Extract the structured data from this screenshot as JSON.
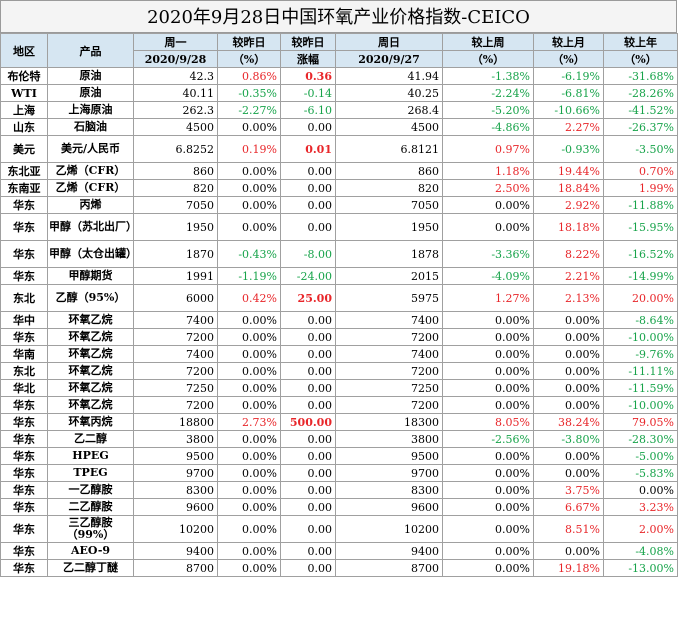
{
  "title": "2020年9月28日中国环氧产业价格指数-CEICO",
  "header": {
    "row1": [
      "地区",
      "产品",
      "周一",
      "较昨日",
      "较昨日",
      "周日",
      "较上周",
      "较上月",
      "较上年"
    ],
    "row2": [
      "2020/9/28",
      "（%）",
      "涨幅",
      "2020/9/27",
      "（%）",
      "（%）",
      "（%）"
    ]
  },
  "colors": {
    "up": "#e8262a",
    "down": "#17a34a",
    "header_bg": "#d6e6f2"
  },
  "rows": [
    {
      "region": "布伦特",
      "product": "原油",
      "mon": "42.3",
      "d_pct": "0.86%",
      "d_abs": "0.36",
      "sun": "41.94",
      "w": "-1.38%",
      "m": "-6.19%",
      "y": "-31.68%"
    },
    {
      "region": "WTI",
      "product": "原油",
      "mon": "40.11",
      "d_pct": "-0.35%",
      "d_abs": "-0.14",
      "sun": "40.25",
      "w": "-2.24%",
      "m": "-6.81%",
      "y": "-28.26%"
    },
    {
      "region": "上海",
      "product": "上海原油",
      "mon": "262.3",
      "d_pct": "-2.27%",
      "d_abs": "-6.10",
      "sun": "268.4",
      "w": "-5.20%",
      "m": "-10.66%",
      "y": "-41.52%"
    },
    {
      "region": "山东",
      "product": "石脑油",
      "mon": "4500",
      "d_pct": "0.00%",
      "d_abs": "0.00",
      "sun": "4500",
      "w": "-4.86%",
      "m": "2.27%",
      "y": "-26.37%"
    },
    {
      "region": "美元",
      "product": "美元/人民币",
      "mon": "6.8252",
      "d_pct": "0.19%",
      "d_abs": "0.01",
      "sun": "6.8121",
      "w": "0.97%",
      "m": "-0.93%",
      "y": "-3.50%"
    },
    {
      "region": "东北亚",
      "product": "乙烯（CFR）",
      "mon": "860",
      "d_pct": "0.00%",
      "d_abs": "0.00",
      "sun": "860",
      "w": "1.18%",
      "m": "19.44%",
      "y": "0.70%"
    },
    {
      "region": "东南亚",
      "product": "乙烯（CFR）",
      "mon": "820",
      "d_pct": "0.00%",
      "d_abs": "0.00",
      "sun": "820",
      "w": "2.50%",
      "m": "18.84%",
      "y": "1.99%"
    },
    {
      "region": "华东",
      "product": "丙烯",
      "mon": "7050",
      "d_pct": "0.00%",
      "d_abs": "0.00",
      "sun": "7050",
      "w": "0.00%",
      "m": "2.92%",
      "y": "-11.88%"
    },
    {
      "region": "华东",
      "product": "甲醇（苏北出厂）",
      "mon": "1950",
      "d_pct": "0.00%",
      "d_abs": "0.00",
      "sun": "1950",
      "w": "0.00%",
      "m": "18.18%",
      "y": "-15.95%"
    },
    {
      "region": "华东",
      "product": "甲醇（太仓出罐）",
      "mon": "1870",
      "d_pct": "-0.43%",
      "d_abs": "-8.00",
      "sun": "1878",
      "w": "-3.36%",
      "m": "8.22%",
      "y": "-16.52%"
    },
    {
      "region": "华东",
      "product": "甲醇期货",
      "mon": "1991",
      "d_pct": "-1.19%",
      "d_abs": "-24.00",
      "sun": "2015",
      "w": "-4.09%",
      "m": "2.21%",
      "y": "-14.99%"
    },
    {
      "region": "东北",
      "product": "乙醇（95%）",
      "mon": "6000",
      "d_pct": "0.42%",
      "d_abs": "25.00",
      "sun": "5975",
      "w": "1.27%",
      "m": "2.13%",
      "y": "20.00%"
    },
    {
      "region": "华中",
      "product": "环氧乙烷",
      "mon": "7400",
      "d_pct": "0.00%",
      "d_abs": "0.00",
      "sun": "7400",
      "w": "0.00%",
      "m": "0.00%",
      "y": "-8.64%"
    },
    {
      "region": "华东",
      "product": "环氧乙烷",
      "mon": "7200",
      "d_pct": "0.00%",
      "d_abs": "0.00",
      "sun": "7200",
      "w": "0.00%",
      "m": "0.00%",
      "y": "-10.00%"
    },
    {
      "region": "华南",
      "product": "环氧乙烷",
      "mon": "7400",
      "d_pct": "0.00%",
      "d_abs": "0.00",
      "sun": "7400",
      "w": "0.00%",
      "m": "0.00%",
      "y": "-9.76%"
    },
    {
      "region": "东北",
      "product": "环氧乙烷",
      "mon": "7200",
      "d_pct": "0.00%",
      "d_abs": "0.00",
      "sun": "7200",
      "w": "0.00%",
      "m": "0.00%",
      "y": "-11.11%"
    },
    {
      "region": "华北",
      "product": "环氧乙烷",
      "mon": "7250",
      "d_pct": "0.00%",
      "d_abs": "0.00",
      "sun": "7250",
      "w": "0.00%",
      "m": "0.00%",
      "y": "-11.59%"
    },
    {
      "region": "华东",
      "product": "环氧乙烷",
      "mon": "7200",
      "d_pct": "0.00%",
      "d_abs": "0.00",
      "sun": "7200",
      "w": "0.00%",
      "m": "0.00%",
      "y": "-10.00%"
    },
    {
      "region": "华东",
      "product": "环氧丙烷",
      "mon": "18800",
      "d_pct": "2.73%",
      "d_abs": "500.00",
      "sun": "18300",
      "w": "8.05%",
      "m": "38.24%",
      "y": "79.05%"
    },
    {
      "region": "华东",
      "product": "乙二醇",
      "mon": "3800",
      "d_pct": "0.00%",
      "d_abs": "0.00",
      "sun": "3800",
      "w": "-2.56%",
      "m": "-3.80%",
      "y": "-28.30%"
    },
    {
      "region": "华东",
      "product": "HPEG",
      "mon": "9500",
      "d_pct": "0.00%",
      "d_abs": "0.00",
      "sun": "9500",
      "w": "0.00%",
      "m": "0.00%",
      "y": "-5.00%"
    },
    {
      "region": "华东",
      "product": "TPEG",
      "mon": "9700",
      "d_pct": "0.00%",
      "d_abs": "0.00",
      "sun": "9700",
      "w": "0.00%",
      "m": "0.00%",
      "y": "-5.83%"
    },
    {
      "region": "华东",
      "product": "一乙醇胺",
      "mon": "8300",
      "d_pct": "0.00%",
      "d_abs": "0.00",
      "sun": "8300",
      "w": "0.00%",
      "m": "3.75%",
      "y": "0.00%"
    },
    {
      "region": "华东",
      "product": "二乙醇胺",
      "mon": "9600",
      "d_pct": "0.00%",
      "d_abs": "0.00",
      "sun": "9600",
      "w": "0.00%",
      "m": "6.67%",
      "y": "3.23%"
    },
    {
      "region": "华东",
      "product": "三乙醇胺（99%）",
      "mon": "10200",
      "d_pct": "0.00%",
      "d_abs": "0.00",
      "sun": "10200",
      "w": "0.00%",
      "m": "8.51%",
      "y": "2.00%"
    },
    {
      "region": "华东",
      "product": "AEO-9",
      "mon": "9400",
      "d_pct": "0.00%",
      "d_abs": "0.00",
      "sun": "9400",
      "w": "0.00%",
      "m": "0.00%",
      "y": "-4.08%"
    },
    {
      "region": "华东",
      "product": "乙二醇丁醚",
      "mon": "8700",
      "d_pct": "0.00%",
      "d_abs": "0.00",
      "sun": "8700",
      "w": "0.00%",
      "m": "19.18%",
      "y": "-13.00%"
    }
  ]
}
